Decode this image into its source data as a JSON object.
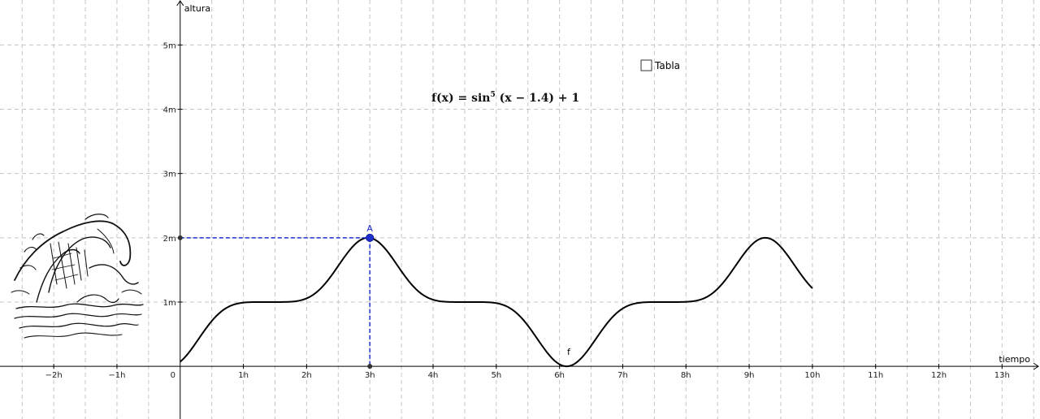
{
  "chart_data": {
    "type": "line",
    "xlabel": "tiempo",
    "ylabel": "altura",
    "xlim": [
      -2.85,
      13.6
    ],
    "ylim": [
      -0.82,
      5.7
    ],
    "grid": true,
    "x_ticks": [
      {
        "value": -2,
        "label": "−2h"
      },
      {
        "value": -1,
        "label": "−1h"
      },
      {
        "value": 0,
        "label": "0"
      },
      {
        "value": 1,
        "label": "1h"
      },
      {
        "value": 2,
        "label": "2h"
      },
      {
        "value": 3,
        "label": "3h"
      },
      {
        "value": 4,
        "label": "4h"
      },
      {
        "value": 5,
        "label": "5h"
      },
      {
        "value": 6,
        "label": "6h"
      },
      {
        "value": 7,
        "label": "7h"
      },
      {
        "value": 8,
        "label": "8h"
      },
      {
        "value": 9,
        "label": "9h"
      },
      {
        "value": 10,
        "label": "10h"
      },
      {
        "value": 11,
        "label": "11h"
      },
      {
        "value": 12,
        "label": "12h"
      },
      {
        "value": 13,
        "label": "13h"
      }
    ],
    "y_ticks": [
      {
        "value": 1,
        "label": "1m"
      },
      {
        "value": 2,
        "label": "2m"
      },
      {
        "value": 3,
        "label": "3m"
      },
      {
        "value": 4,
        "label": "4m"
      },
      {
        "value": 5,
        "label": "5m"
      }
    ],
    "function": {
      "name": "f",
      "formula_prefix": "f(x) = sin",
      "formula_exponent": "5",
      "formula_suffix": " (x − 1.4) + 1",
      "domain": [
        0,
        10
      ],
      "shift": 1.4,
      "power": 5,
      "offset": 1,
      "color": "#000000"
    },
    "point": {
      "name": "A",
      "x": 3,
      "y": 2,
      "color": "#1f2fcc"
    },
    "checkbox": {
      "label": "Tabla",
      "checked": false
    }
  },
  "illustration": {
    "name": "wave-illustration"
  }
}
